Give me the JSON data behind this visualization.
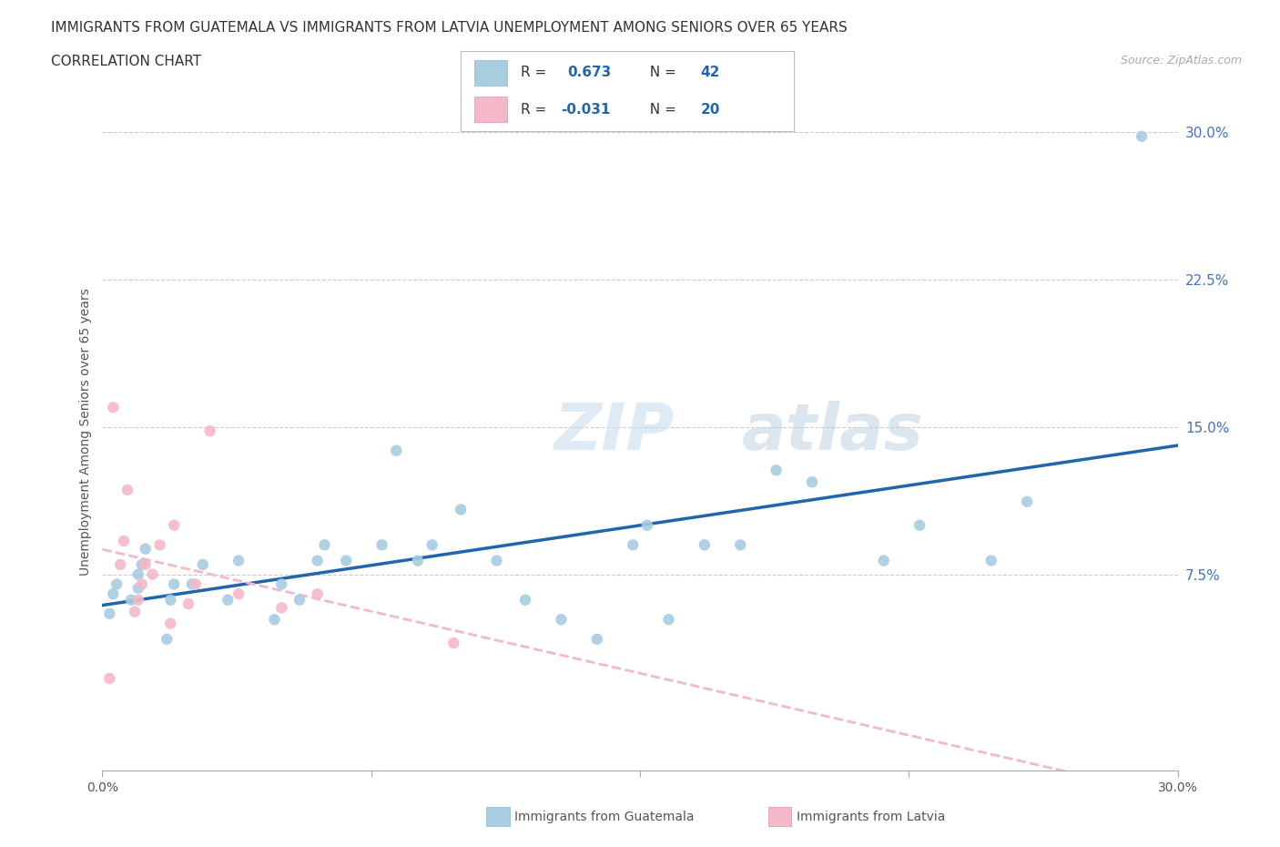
{
  "title_line1": "IMMIGRANTS FROM GUATEMALA VS IMMIGRANTS FROM LATVIA UNEMPLOYMENT AMONG SENIORS OVER 65 YEARS",
  "title_line2": "CORRELATION CHART",
  "source_text": "Source: ZipAtlas.com",
  "ylabel": "Unemployment Among Seniors over 65 years",
  "xlim": [
    0.0,
    0.3
  ],
  "ylim": [
    -0.025,
    0.32
  ],
  "guatemala_color": "#a8cce0",
  "latvia_color": "#f4b8c8",
  "guatemala_line_color": "#2166ac",
  "latvia_line_color": "#f4b8c8",
  "R_guatemala": 0.673,
  "N_guatemala": 42,
  "R_latvia": -0.031,
  "N_latvia": 20,
  "guatemala_x": [
    0.002,
    0.003,
    0.004,
    0.008,
    0.01,
    0.01,
    0.011,
    0.012,
    0.018,
    0.019,
    0.02,
    0.025,
    0.028,
    0.035,
    0.038,
    0.048,
    0.05,
    0.055,
    0.06,
    0.062,
    0.068,
    0.078,
    0.082,
    0.088,
    0.092,
    0.1,
    0.11,
    0.118,
    0.128,
    0.138,
    0.148,
    0.152,
    0.158,
    0.168,
    0.178,
    0.188,
    0.198,
    0.218,
    0.228,
    0.248,
    0.258,
    0.29
  ],
  "guatemala_y": [
    0.055,
    0.065,
    0.07,
    0.062,
    0.068,
    0.075,
    0.08,
    0.088,
    0.042,
    0.062,
    0.07,
    0.07,
    0.08,
    0.062,
    0.082,
    0.052,
    0.07,
    0.062,
    0.082,
    0.09,
    0.082,
    0.09,
    0.138,
    0.082,
    0.09,
    0.108,
    0.082,
    0.062,
    0.052,
    0.042,
    0.09,
    0.1,
    0.052,
    0.09,
    0.09,
    0.128,
    0.122,
    0.082,
    0.1,
    0.082,
    0.112,
    0.298
  ],
  "latvia_x": [
    0.002,
    0.003,
    0.005,
    0.006,
    0.007,
    0.009,
    0.01,
    0.011,
    0.012,
    0.014,
    0.016,
    0.019,
    0.02,
    0.024,
    0.026,
    0.03,
    0.038,
    0.05,
    0.06,
    0.098
  ],
  "latvia_y": [
    0.022,
    0.16,
    0.08,
    0.092,
    0.118,
    0.056,
    0.062,
    0.07,
    0.08,
    0.075,
    0.09,
    0.05,
    0.1,
    0.06,
    0.07,
    0.148,
    0.065,
    0.058,
    0.065,
    0.04
  ],
  "ytick_positions": [
    0.0,
    0.075,
    0.15,
    0.225,
    0.3
  ],
  "ytick_labels": [
    "",
    "7.5%",
    "15.0%",
    "22.5%",
    "30.0%"
  ],
  "grid_lines": [
    0.075,
    0.15,
    0.225,
    0.3
  ]
}
